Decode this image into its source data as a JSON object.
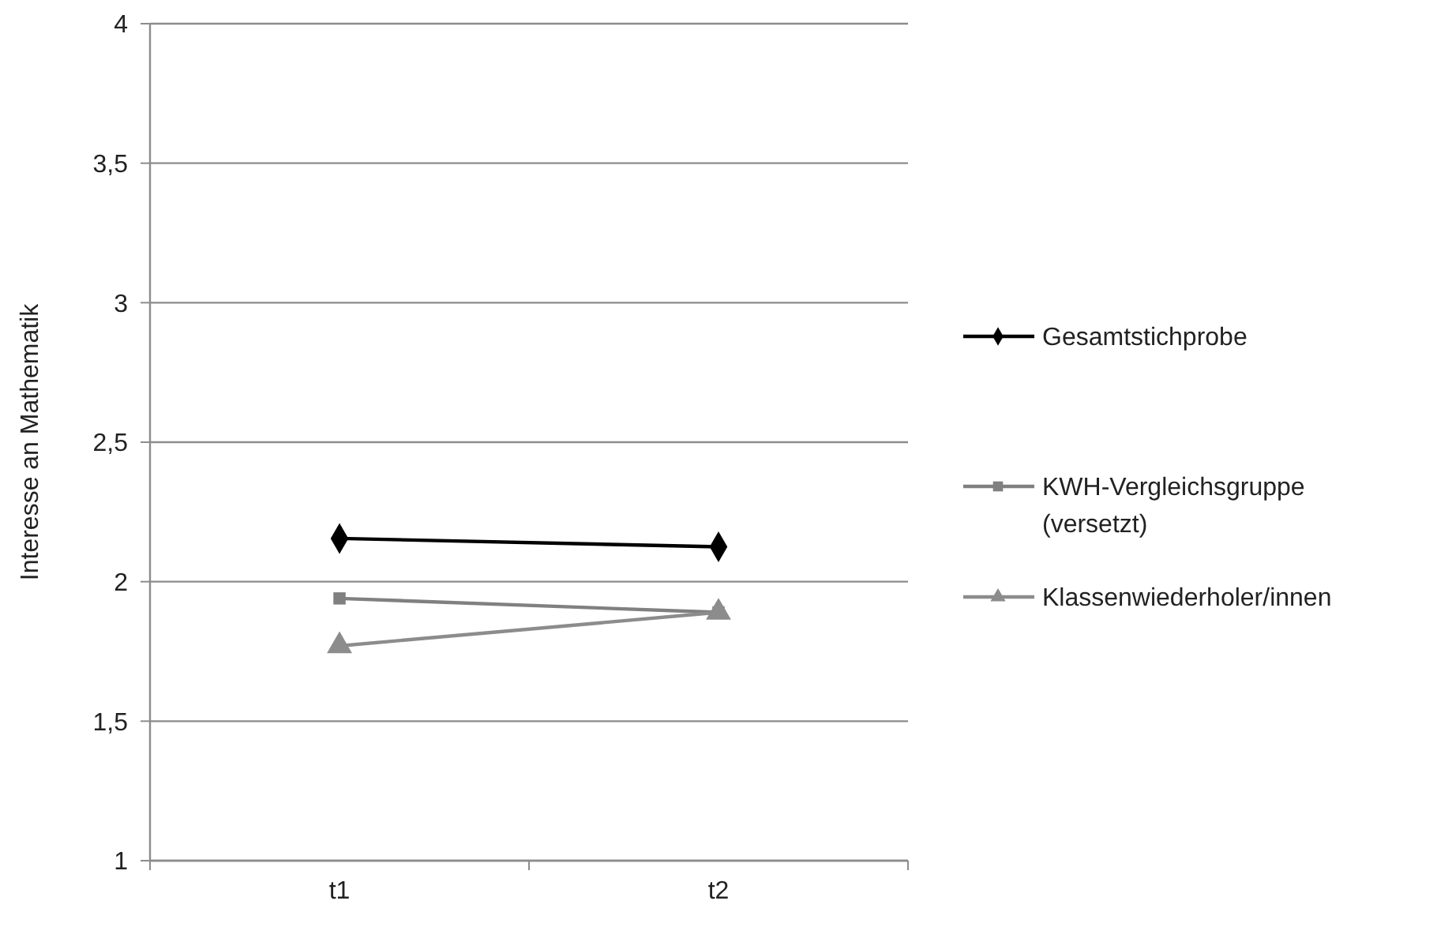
{
  "chart_data": {
    "type": "line",
    "ylabel": "Interesse an Mathematik",
    "categories": [
      "t1",
      "t2"
    ],
    "series": [
      {
        "name": "Gesamtstichprobe",
        "color": "#000000",
        "marker": "diamond",
        "values": [
          2.155,
          2.125
        ]
      },
      {
        "name": "KWH-Vergleichsgruppe (versetzt)",
        "color": "#808080",
        "marker": "square",
        "values": [
          1.94,
          1.89
        ]
      },
      {
        "name": "Klassenwiederholer/innen",
        "color": "#8c8c8c",
        "marker": "triangle",
        "values": [
          1.77,
          1.89
        ]
      }
    ],
    "ylim": [
      1,
      4
    ],
    "yticks": [
      {
        "value": 1,
        "label": "1"
      },
      {
        "value": 1.5,
        "label": "1,5"
      },
      {
        "value": 2,
        "label": "2"
      },
      {
        "value": 2.5,
        "label": "2,5"
      },
      {
        "value": 3,
        "label": "3"
      },
      {
        "value": 3.5,
        "label": "3,5"
      },
      {
        "value": 4,
        "label": "4"
      }
    ],
    "grid": "y",
    "legend": "right"
  }
}
